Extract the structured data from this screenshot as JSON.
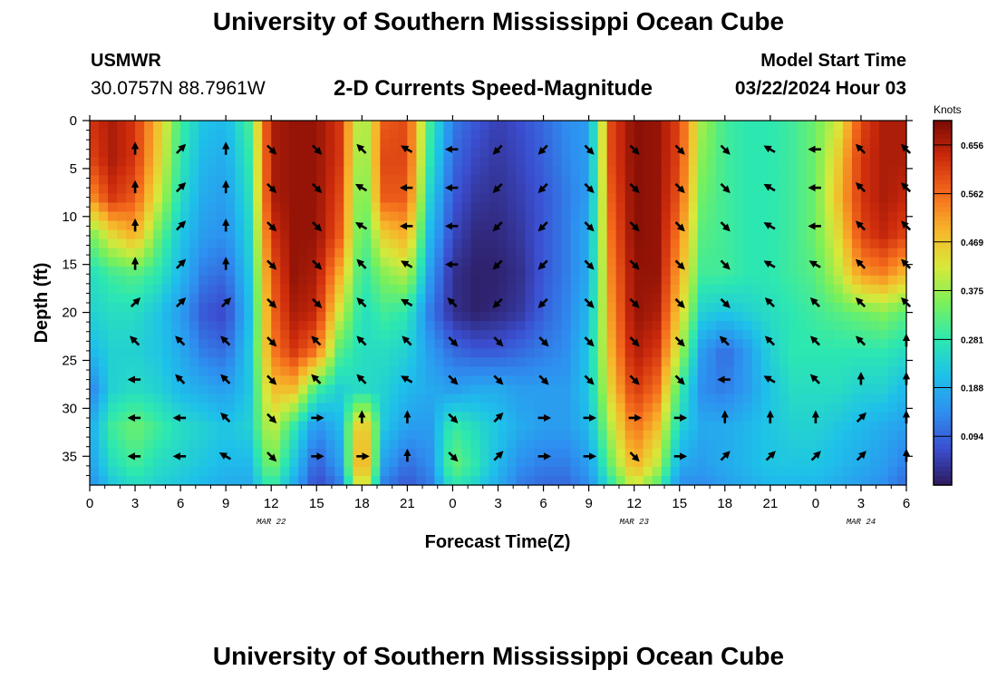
{
  "header": {
    "title": "University of Southern Mississippi Ocean Cube",
    "station_id": "USMWR",
    "coordinates": "30.0757N  88.7961W",
    "plot_title": "2-D Currents Speed-Magnitude",
    "model_start_label": "Model Start Time",
    "model_start_value": "03/22/2024 Hour 03"
  },
  "footer": {
    "title": "University of Southern Mississippi Ocean Cube"
  },
  "chart_data": {
    "type": "heatmap",
    "title": "2-D Currents Speed-Magnitude",
    "xlabel": "Forecast Time(Z)",
    "ylabel": "Depth (ft)",
    "xlim": [
      0,
      54
    ],
    "ylim": [
      38,
      0
    ],
    "x_tick_values": [
      0,
      3,
      6,
      9,
      12,
      15,
      18,
      21,
      24,
      27,
      30,
      33,
      36,
      39,
      42,
      45,
      48,
      51,
      54
    ],
    "x_tick_labels": [
      "0",
      "3",
      "6",
      "9",
      "12",
      "15",
      "18",
      "21",
      "0",
      "3",
      "6",
      "9",
      "12",
      "15",
      "18",
      "21",
      "0",
      "3",
      "6"
    ],
    "y_tick_values": [
      0,
      5,
      10,
      15,
      20,
      25,
      30,
      35
    ],
    "y_tick_labels": [
      "0",
      "5",
      "10",
      "15",
      "20",
      "25",
      "30",
      "35"
    ],
    "date_labels": [
      {
        "text": "MAR 22",
        "x": 12
      },
      {
        "text": "MAR 23",
        "x": 36
      },
      {
        "text": "MAR 24",
        "x": 51
      }
    ],
    "colorbar": {
      "label": "Knots",
      "range": [
        0.0,
        0.703
      ],
      "tick_values": [
        0.094,
        0.188,
        0.281,
        0.375,
        0.469,
        0.562,
        0.656
      ],
      "tick_labels": [
        "0.094",
        "0.188",
        "0.281",
        "0.375",
        "0.469",
        "0.562",
        "0.656"
      ],
      "colors": [
        "#2d1a5c",
        "#3b4fd1",
        "#2e8ff0",
        "#1ec0ea",
        "#2de8b0",
        "#7af05a",
        "#d9e83a",
        "#f7b52a",
        "#f46a1c",
        "#cc2a0c",
        "#7a0a04"
      ]
    },
    "speed_knots": {
      "times": [
        0,
        1.5,
        3,
        4.5,
        6,
        7.5,
        9,
        10.5,
        12,
        13.5,
        15,
        16.5,
        18,
        19.5,
        21,
        22.5,
        24,
        25.5,
        27,
        28.5,
        30,
        31.5,
        33,
        34.5,
        36,
        37.5,
        39,
        40.5,
        42,
        43.5,
        45,
        46.5,
        48,
        49.5,
        51,
        52.5,
        54
      ],
      "depths": [
        0,
        4,
        8,
        12,
        16,
        20,
        24,
        28,
        32,
        36,
        38
      ],
      "values": [
        [
          0.62,
          0.66,
          0.62,
          0.48,
          0.3,
          0.22,
          0.2,
          0.3,
          0.66,
          0.68,
          0.68,
          0.62,
          0.35,
          0.58,
          0.6,
          0.3,
          0.12,
          0.08,
          0.05,
          0.07,
          0.1,
          0.14,
          0.16,
          0.6,
          0.69,
          0.68,
          0.6,
          0.38,
          0.3,
          0.28,
          0.28,
          0.3,
          0.34,
          0.42,
          0.6,
          0.66,
          0.66
        ],
        [
          0.6,
          0.66,
          0.62,
          0.46,
          0.28,
          0.2,
          0.18,
          0.28,
          0.66,
          0.68,
          0.68,
          0.62,
          0.33,
          0.6,
          0.6,
          0.28,
          0.1,
          0.06,
          0.04,
          0.06,
          0.09,
          0.13,
          0.16,
          0.6,
          0.69,
          0.68,
          0.6,
          0.36,
          0.3,
          0.28,
          0.28,
          0.3,
          0.34,
          0.46,
          0.62,
          0.66,
          0.66
        ],
        [
          0.52,
          0.62,
          0.58,
          0.42,
          0.26,
          0.18,
          0.16,
          0.26,
          0.66,
          0.68,
          0.68,
          0.6,
          0.31,
          0.58,
          0.58,
          0.24,
          0.08,
          0.04,
          0.03,
          0.05,
          0.08,
          0.12,
          0.16,
          0.58,
          0.69,
          0.68,
          0.58,
          0.34,
          0.3,
          0.28,
          0.28,
          0.3,
          0.34,
          0.48,
          0.62,
          0.66,
          0.64
        ],
        [
          0.34,
          0.44,
          0.5,
          0.34,
          0.22,
          0.16,
          0.14,
          0.24,
          0.62,
          0.68,
          0.68,
          0.58,
          0.3,
          0.46,
          0.5,
          0.2,
          0.06,
          0.02,
          0.02,
          0.04,
          0.08,
          0.12,
          0.18,
          0.56,
          0.69,
          0.68,
          0.54,
          0.32,
          0.3,
          0.28,
          0.28,
          0.3,
          0.34,
          0.44,
          0.6,
          0.64,
          0.6
        ],
        [
          0.26,
          0.3,
          0.32,
          0.28,
          0.2,
          0.12,
          0.1,
          0.22,
          0.58,
          0.68,
          0.66,
          0.5,
          0.28,
          0.36,
          0.4,
          0.16,
          0.03,
          0.01,
          0.01,
          0.03,
          0.08,
          0.12,
          0.18,
          0.54,
          0.68,
          0.68,
          0.5,
          0.3,
          0.3,
          0.28,
          0.28,
          0.3,
          0.32,
          0.4,
          0.52,
          0.54,
          0.48
        ],
        [
          0.24,
          0.26,
          0.26,
          0.22,
          0.16,
          0.08,
          0.06,
          0.2,
          0.56,
          0.66,
          0.64,
          0.42,
          0.26,
          0.3,
          0.28,
          0.12,
          0.03,
          0.01,
          0.02,
          0.04,
          0.09,
          0.13,
          0.2,
          0.52,
          0.68,
          0.66,
          0.46,
          0.24,
          0.22,
          0.24,
          0.26,
          0.28,
          0.3,
          0.32,
          0.34,
          0.36,
          0.32
        ],
        [
          0.2,
          0.24,
          0.24,
          0.22,
          0.18,
          0.12,
          0.1,
          0.22,
          0.54,
          0.62,
          0.56,
          0.32,
          0.26,
          0.26,
          0.24,
          0.16,
          0.1,
          0.08,
          0.08,
          0.1,
          0.12,
          0.14,
          0.22,
          0.5,
          0.66,
          0.62,
          0.4,
          0.16,
          0.1,
          0.16,
          0.24,
          0.28,
          0.28,
          0.28,
          0.28,
          0.28,
          0.26
        ],
        [
          0.12,
          0.24,
          0.26,
          0.24,
          0.2,
          0.18,
          0.16,
          0.22,
          0.48,
          0.48,
          0.3,
          0.24,
          0.26,
          0.24,
          0.2,
          0.18,
          0.16,
          0.18,
          0.18,
          0.16,
          0.16,
          0.16,
          0.22,
          0.46,
          0.62,
          0.56,
          0.3,
          0.14,
          0.12,
          0.16,
          0.22,
          0.26,
          0.26,
          0.26,
          0.24,
          0.24,
          0.2
        ],
        [
          0.18,
          0.3,
          0.34,
          0.3,
          0.26,
          0.24,
          0.22,
          0.24,
          0.42,
          0.28,
          0.14,
          0.2,
          0.52,
          0.22,
          0.16,
          0.16,
          0.3,
          0.26,
          0.22,
          0.18,
          0.16,
          0.16,
          0.2,
          0.4,
          0.56,
          0.48,
          0.24,
          0.18,
          0.18,
          0.2,
          0.22,
          0.24,
          0.24,
          0.22,
          0.2,
          0.18,
          0.16
        ],
        [
          0.16,
          0.26,
          0.3,
          0.26,
          0.24,
          0.22,
          0.2,
          0.2,
          0.36,
          0.22,
          0.08,
          0.16,
          0.56,
          0.16,
          0.1,
          0.14,
          0.34,
          0.28,
          0.2,
          0.14,
          0.12,
          0.12,
          0.16,
          0.34,
          0.5,
          0.4,
          0.18,
          0.16,
          0.18,
          0.2,
          0.22,
          0.22,
          0.22,
          0.2,
          0.18,
          0.16,
          0.12
        ],
        [
          0.14,
          0.22,
          0.26,
          0.24,
          0.22,
          0.2,
          0.18,
          0.18,
          0.3,
          0.18,
          0.06,
          0.12,
          0.48,
          0.12,
          0.08,
          0.12,
          0.28,
          0.24,
          0.18,
          0.12,
          0.1,
          0.1,
          0.14,
          0.28,
          0.42,
          0.32,
          0.14,
          0.14,
          0.16,
          0.18,
          0.2,
          0.2,
          0.2,
          0.18,
          0.16,
          0.14,
          0.1
        ]
      ]
    },
    "current_vectors": {
      "times": [
        3,
        6,
        9,
        12,
        15,
        18,
        21,
        24,
        27,
        30,
        33,
        36,
        39,
        42,
        45,
        48,
        51,
        54
      ],
      "depths": [
        3,
        7,
        11,
        15,
        19,
        23,
        27,
        31,
        35
      ],
      "direction_deg": [
        [
          0,
          45,
          0,
          135,
          135,
          315,
          300,
          270,
          225,
          225,
          135,
          135,
          135,
          135,
          300,
          270,
          315,
          315
        ],
        [
          0,
          45,
          0,
          135,
          135,
          300,
          270,
          270,
          225,
          225,
          135,
          135,
          135,
          135,
          300,
          270,
          315,
          315
        ],
        [
          0,
          45,
          0,
          135,
          135,
          300,
          270,
          270,
          225,
          225,
          135,
          135,
          135,
          135,
          300,
          270,
          315,
          315
        ],
        [
          0,
          45,
          0,
          135,
          135,
          315,
          300,
          270,
          225,
          225,
          135,
          135,
          135,
          135,
          300,
          300,
          315,
          315
        ],
        [
          45,
          45,
          45,
          135,
          135,
          315,
          300,
          315,
          225,
          225,
          135,
          135,
          135,
          135,
          315,
          315,
          315,
          315
        ],
        [
          315,
          315,
          315,
          135,
          315,
          315,
          315,
          135,
          135,
          135,
          135,
          135,
          135,
          315,
          315,
          315,
          315,
          0
        ],
        [
          270,
          315,
          315,
          135,
          315,
          315,
          300,
          135,
          135,
          135,
          135,
          135,
          135,
          270,
          300,
          315,
          0,
          0
        ],
        [
          270,
          270,
          315,
          135,
          90,
          0,
          0,
          135,
          45,
          90,
          90,
          90,
          90,
          0,
          0,
          0,
          45,
          0
        ],
        [
          270,
          270,
          300,
          135,
          90,
          90,
          0,
          135,
          45,
          90,
          90,
          135,
          90,
          45,
          45,
          45,
          45,
          0
        ]
      ]
    }
  }
}
